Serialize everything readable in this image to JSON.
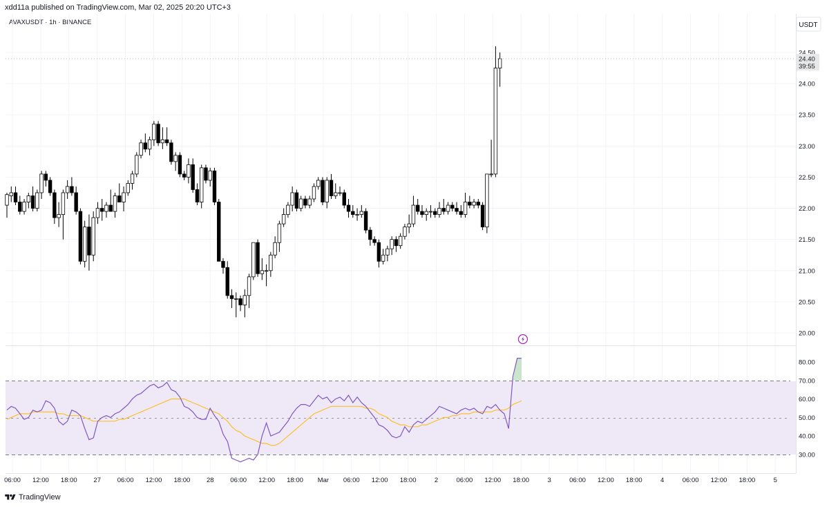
{
  "header": {
    "published_text": "xdd11a published on TradingView.com, Mar 02, 2025 20:20 UTC+3"
  },
  "symbol_line": "AVAXUSDT · 1h · BINANCE",
  "currency_label": "USDT",
  "footer": {
    "brand": "TradingView"
  },
  "colors": {
    "up_candle": "#ffffff",
    "down_candle": "#000000",
    "candle_border": "#000000",
    "rsi_line": "#7e57c2",
    "rsi_ma": "#fbc02d",
    "rsi_band": "#ede7f6",
    "current_price_badge": "#e8e8e8",
    "event_icon": "#9c27b0",
    "grid": "#f0f3fa"
  },
  "chart_data": [
    {
      "type": "candlestick",
      "title": "AVAXUSDT · 1h · BINANCE",
      "ylabel": "USDT",
      "y_ticks": [
        "24.50",
        "24.00",
        "23.50",
        "23.00",
        "22.50",
        "22.00",
        "21.50",
        "21.00",
        "20.50",
        "20.00"
      ],
      "ylim": [
        19.85,
        24.55
      ],
      "x_tick_labels": [
        "06:00",
        "12:00",
        "18:00",
        "27",
        "06:00",
        "12:00",
        "18:00",
        "28",
        "06:00",
        "12:00",
        "18:00",
        "Mar",
        "06:00",
        "12:00",
        "18:00",
        "2",
        "06:00",
        "12:00",
        "18:00",
        "3",
        "06:00",
        "12:00",
        "18:00",
        "4",
        "06:00",
        "12:00",
        "18:00",
        "5"
      ],
      "last_price": "24.40",
      "countdown": "39:55",
      "ohlc": [
        [
          22.05,
          22.25,
          21.85,
          22.22
        ],
        [
          22.2,
          22.35,
          22.1,
          22.25
        ],
        [
          22.25,
          22.35,
          22.05,
          22.1
        ],
        [
          22.1,
          22.2,
          21.9,
          21.95
        ],
        [
          21.95,
          22.15,
          21.9,
          22.1
        ],
        [
          22.1,
          22.25,
          22.0,
          22.2
        ],
        [
          22.2,
          22.35,
          21.95,
          22.0
        ],
        [
          22.0,
          22.3,
          21.95,
          22.25
        ],
        [
          22.25,
          22.6,
          22.15,
          22.55
        ],
        [
          22.55,
          22.6,
          22.35,
          22.45
        ],
        [
          22.45,
          22.5,
          22.2,
          22.25
        ],
        [
          22.25,
          22.3,
          21.75,
          21.85
        ],
        [
          21.85,
          22.1,
          21.7,
          21.9
        ],
        [
          21.9,
          22.3,
          21.5,
          22.25
        ],
        [
          22.25,
          22.45,
          22.15,
          22.35
        ],
        [
          22.35,
          22.5,
          22.2,
          22.25
        ],
        [
          22.25,
          22.35,
          21.9,
          21.95
        ],
        [
          21.95,
          22.0,
          21.1,
          21.15
        ],
        [
          21.15,
          21.8,
          21.05,
          21.7
        ],
        [
          21.7,
          21.9,
          21.0,
          21.25
        ],
        [
          21.25,
          21.95,
          21.15,
          21.85
        ],
        [
          21.85,
          22.1,
          21.75,
          22.0
        ],
        [
          22.0,
          22.15,
          21.8,
          21.95
        ],
        [
          21.95,
          22.1,
          21.85,
          22.05
        ],
        [
          22.05,
          22.3,
          21.95,
          21.95
        ],
        [
          21.95,
          22.25,
          21.85,
          22.2
        ],
        [
          22.2,
          22.4,
          22.1,
          22.1
        ],
        [
          22.1,
          22.35,
          21.95,
          22.25
        ],
        [
          22.25,
          22.45,
          22.2,
          22.4
        ],
        [
          22.4,
          22.6,
          22.3,
          22.55
        ],
        [
          22.55,
          22.9,
          22.5,
          22.85
        ],
        [
          22.85,
          23.1,
          22.8,
          23.05
        ],
        [
          23.05,
          23.2,
          22.9,
          22.95
        ],
        [
          22.95,
          23.15,
          22.85,
          23.1
        ],
        [
          23.1,
          23.4,
          23.0,
          23.35
        ],
        [
          23.35,
          23.4,
          23.0,
          23.05
        ],
        [
          23.05,
          23.3,
          22.95,
          23.1
        ],
        [
          23.1,
          23.3,
          23.0,
          23.05
        ],
        [
          23.05,
          23.1,
          22.7,
          22.75
        ],
        [
          22.75,
          22.9,
          22.6,
          22.85
        ],
        [
          22.85,
          22.9,
          22.5,
          22.55
        ],
        [
          22.55,
          22.6,
          22.45,
          22.5
        ],
        [
          22.5,
          22.8,
          22.4,
          22.7
        ],
        [
          22.7,
          22.8,
          22.25,
          22.3
        ],
        [
          22.3,
          22.4,
          22.05,
          22.1
        ],
        [
          22.1,
          22.7,
          22.0,
          22.65
        ],
        [
          22.65,
          22.7,
          22.4,
          22.45
        ],
        [
          22.45,
          22.65,
          22.35,
          22.6
        ],
        [
          22.6,
          22.65,
          22.05,
          22.1
        ],
        [
          22.1,
          22.15,
          21.15,
          21.15
        ],
        [
          21.15,
          21.2,
          20.95,
          21.05
        ],
        [
          21.05,
          21.15,
          20.55,
          20.6
        ],
        [
          20.6,
          20.7,
          20.4,
          20.55
        ],
        [
          20.55,
          20.65,
          20.25,
          20.55
        ],
        [
          20.55,
          20.6,
          20.35,
          20.45
        ],
        [
          20.45,
          20.7,
          20.25,
          20.6
        ],
        [
          20.6,
          20.95,
          20.4,
          20.9
        ],
        [
          20.9,
          21.45,
          20.85,
          21.45
        ],
        [
          21.45,
          21.5,
          20.9,
          20.95
        ],
        [
          20.95,
          21.2,
          20.85,
          21.0
        ],
        [
          21.0,
          21.1,
          20.75,
          21.0
        ],
        [
          21.0,
          21.3,
          20.9,
          21.25
        ],
        [
          21.25,
          21.55,
          21.2,
          21.45
        ],
        [
          21.45,
          21.8,
          21.3,
          21.75
        ],
        [
          21.75,
          22.0,
          21.7,
          21.9
        ],
        [
          21.9,
          22.1,
          21.85,
          22.05
        ],
        [
          22.05,
          22.35,
          21.95,
          22.25
        ],
        [
          22.25,
          22.3,
          21.95,
          22.0
        ],
        [
          22.0,
          22.2,
          21.95,
          22.15
        ],
        [
          22.15,
          22.2,
          22.0,
          22.05
        ],
        [
          22.05,
          22.2,
          22.0,
          22.15
        ],
        [
          22.15,
          22.4,
          22.1,
          22.35
        ],
        [
          22.35,
          22.5,
          22.3,
          22.45
        ],
        [
          22.45,
          22.5,
          22.05,
          22.1
        ],
        [
          22.1,
          22.5,
          22.0,
          22.45
        ],
        [
          22.45,
          22.55,
          22.15,
          22.2
        ],
        [
          22.2,
          22.4,
          22.15,
          22.25
        ],
        [
          22.25,
          22.35,
          22.2,
          22.25
        ],
        [
          22.25,
          22.3,
          22.0,
          22.05
        ],
        [
          22.05,
          22.15,
          21.85,
          21.95
        ],
        [
          21.95,
          22.05,
          21.85,
          21.9
        ],
        [
          21.9,
          22.0,
          21.8,
          21.9
        ],
        [
          21.9,
          22.05,
          21.85,
          21.95
        ],
        [
          21.95,
          22.0,
          21.6,
          21.65
        ],
        [
          21.65,
          21.7,
          21.4,
          21.5
        ],
        [
          21.5,
          21.55,
          21.4,
          21.45
        ],
        [
          21.45,
          21.5,
          21.05,
          21.15
        ],
        [
          21.15,
          21.35,
          21.1,
          21.25
        ],
        [
          21.25,
          21.4,
          21.15,
          21.35
        ],
        [
          21.35,
          21.55,
          21.25,
          21.5
        ],
        [
          21.5,
          21.55,
          21.3,
          21.4
        ],
        [
          21.4,
          21.6,
          21.35,
          21.55
        ],
        [
          21.55,
          21.75,
          21.5,
          21.7
        ],
        [
          21.7,
          21.9,
          21.6,
          21.75
        ],
        [
          21.75,
          22.2,
          21.7,
          22.05
        ],
        [
          22.05,
          22.15,
          21.9,
          21.95
        ],
        [
          21.95,
          22.05,
          21.85,
          21.9
        ],
        [
          21.9,
          22.0,
          21.8,
          21.95
        ],
        [
          21.95,
          22.05,
          21.85,
          21.95
        ],
        [
          21.95,
          22.0,
          21.85,
          21.9
        ],
        [
          21.9,
          22.1,
          21.85,
          22.0
        ],
        [
          22.0,
          22.15,
          21.9,
          21.95
        ],
        [
          21.95,
          22.1,
          21.9,
          22.05
        ],
        [
          22.05,
          22.1,
          21.95,
          22.0
        ],
        [
          22.0,
          22.1,
          21.9,
          21.95
        ],
        [
          21.95,
          22.05,
          21.85,
          21.9
        ],
        [
          21.9,
          22.25,
          21.85,
          22.1
        ],
        [
          22.1,
          22.2,
          22.0,
          22.05
        ],
        [
          22.05,
          22.15,
          22.0,
          22.1
        ],
        [
          22.1,
          22.15,
          22.0,
          22.05
        ],
        [
          22.05,
          22.1,
          21.65,
          21.7
        ],
        [
          21.7,
          22.55,
          21.6,
          22.55
        ],
        [
          22.55,
          23.1,
          22.5,
          22.55
        ],
        [
          22.55,
          24.6,
          22.5,
          24.25
        ],
        [
          24.25,
          24.5,
          23.95,
          24.4
        ]
      ]
    },
    {
      "type": "line",
      "title": "RSI",
      "y_ticks": [
        "80.00",
        "70.00",
        "60.00",
        "50.00",
        "40.00",
        "30.00"
      ],
      "ylim": [
        25,
        85
      ],
      "band": [
        30,
        70
      ],
      "midline": 50,
      "series": [
        {
          "values": [
            54,
            56,
            55,
            52,
            49,
            50,
            54,
            53,
            54,
            59,
            58,
            55,
            48,
            46,
            48,
            54,
            53,
            51,
            44,
            38,
            39,
            48,
            50,
            51,
            50,
            52,
            53,
            55,
            57,
            60,
            62,
            63,
            65,
            67,
            68,
            66,
            67,
            69,
            65,
            64,
            61,
            56,
            55,
            53,
            50,
            49,
            49,
            55,
            51,
            48,
            41,
            37,
            28,
            27,
            26,
            27,
            28,
            27,
            30,
            40,
            47,
            40,
            41,
            42,
            45,
            48,
            52,
            55,
            57,
            57,
            56,
            59,
            62,
            60,
            61,
            58,
            60,
            61,
            59,
            62,
            58,
            61,
            58,
            56,
            53,
            50,
            46,
            45,
            43,
            40,
            39,
            40,
            45,
            42,
            46,
            48,
            47,
            49,
            51,
            53,
            56,
            55,
            54,
            53,
            52,
            54,
            55,
            54,
            55,
            53,
            52,
            56,
            55,
            57,
            54,
            52,
            44,
            72,
            82,
            82
          ]
        },
        {
          "values": [
            49,
            50,
            51,
            52,
            52,
            52,
            53,
            53,
            53,
            53,
            53,
            53,
            52,
            52,
            51,
            51,
            51,
            51,
            50,
            49,
            48,
            48,
            48,
            48,
            48,
            48,
            49,
            49,
            50,
            51,
            52,
            53,
            54,
            55,
            56,
            57,
            58,
            59,
            60,
            60,
            60,
            60,
            59,
            58,
            57,
            56,
            55,
            54,
            53,
            52,
            50,
            48,
            45,
            43,
            42,
            40,
            39,
            38,
            37,
            36,
            36,
            35,
            35,
            36,
            38,
            40,
            42,
            44,
            46,
            48,
            50,
            52,
            53,
            54,
            55,
            56,
            56,
            56,
            56,
            56,
            56,
            56,
            56,
            55,
            55,
            54,
            52,
            51,
            50,
            48,
            47,
            46,
            46,
            45,
            45,
            45,
            46,
            46,
            47,
            48,
            49,
            50,
            50,
            51,
            51,
            52,
            52,
            52,
            53,
            53,
            53,
            53,
            53,
            54,
            54,
            54,
            55,
            57,
            58,
            59
          ]
        }
      ]
    }
  ]
}
